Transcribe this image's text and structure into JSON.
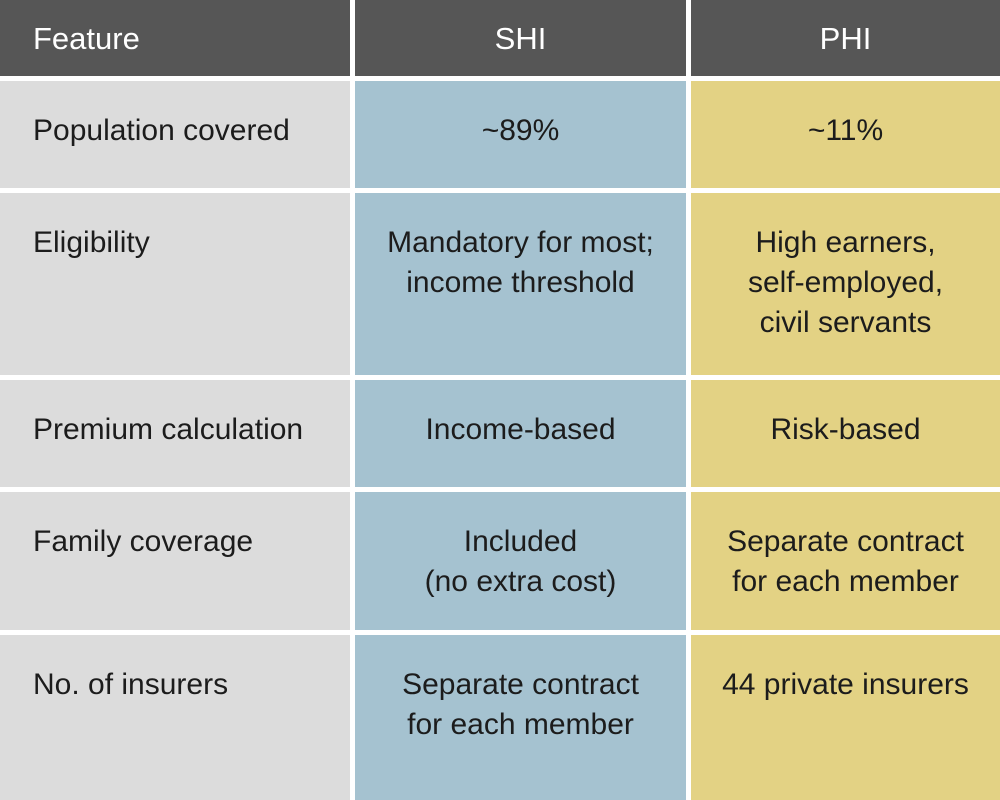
{
  "colors": {
    "header_bg": "#565656",
    "header_text": "#ffffff",
    "feature_column_bg": "#dcdcdc",
    "shi_column_bg": "#a5c2d0",
    "phi_column_bg": "#e3d284",
    "body_text": "#1c1c1c",
    "divider": "#ffffff"
  },
  "table": {
    "headers": {
      "feature": "Feature",
      "shi": "SHI",
      "phi": "PHI"
    },
    "rows": [
      {
        "feature": "Population covered",
        "shi": "~89%",
        "phi": "~11%"
      },
      {
        "feature": "Eligibility",
        "shi": "Mandatory for most;\nincome threshold",
        "phi": "High earners,\nself-employed,\ncivil servants"
      },
      {
        "feature": "Premium calculation",
        "shi": "Income-based",
        "phi": "Risk-based"
      },
      {
        "feature": "Family coverage",
        "shi": "Included\n(no extra cost)",
        "phi": "Separate contract\nfor each member"
      },
      {
        "feature": "No. of insurers",
        "shi": "Separate contract\nfor each member",
        "phi": "44 private insurers"
      }
    ]
  },
  "chart_data": {
    "type": "table",
    "columns": [
      "Feature",
      "SHI",
      "PHI"
    ],
    "rows": [
      [
        "Population covered",
        "~89%",
        "~11%"
      ],
      [
        "Eligibility",
        "Mandatory for most; income threshold",
        "High earners, self-employed, civil servants"
      ],
      [
        "Premium calculation",
        "Income-based",
        "Risk-based"
      ],
      [
        "Family coverage",
        "Included (no extra cost)",
        "Separate contract for each member"
      ],
      [
        "No. of insurers",
        "Separate contract for each member",
        "44 private insurers"
      ]
    ]
  }
}
